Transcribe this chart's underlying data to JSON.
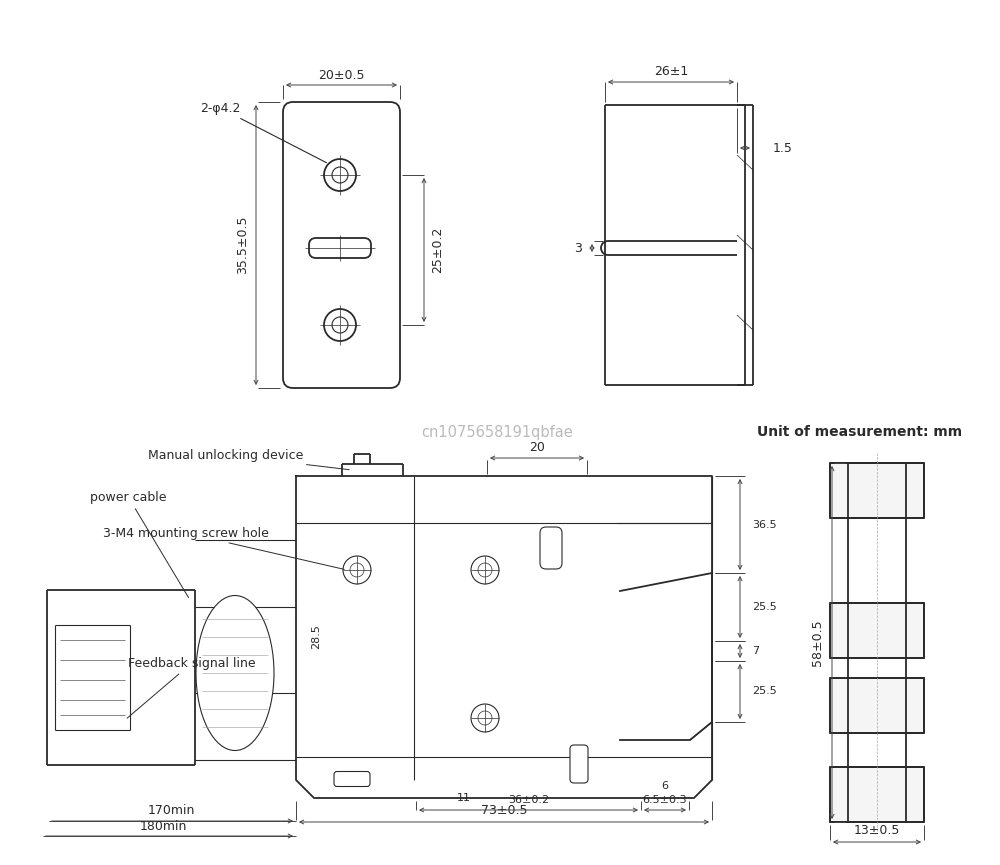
{
  "bg_color": "#ffffff",
  "line_color": "#2a2a2a",
  "dim_color": "#444444",
  "watermark_text": "cn1075658191qbfae",
  "watermark_color": "#bbbbbb",
  "unit_text": "Unit of measurement: mm",
  "annotations": {
    "label_2_phi42": "2-φ4.2",
    "label_20": "20±0.5",
    "label_355": "35.5±0.5",
    "label_25": "25±0.2",
    "label_26": "26±1",
    "label_15": "1.5",
    "label_3": "3",
    "label_manual": "Manual unlocking device",
    "label_power": "power cable",
    "label_3m4": "3-M4 mounting screw hole",
    "label_feedback": "Feedback signal line",
    "label_170": "170min",
    "label_180": "180min",
    "label_20b": "20",
    "label_365": "36.5",
    "label_255a": "25.5",
    "label_7": "7",
    "label_285": "28.5",
    "label_11": "11",
    "label_255b": "25.5",
    "label_6": "6",
    "label_36": "36±0.2",
    "label_65": "6.5±0.3",
    "label_73": "73±0.5",
    "label_58": "58±0.5",
    "label_13": "13±0.5"
  }
}
